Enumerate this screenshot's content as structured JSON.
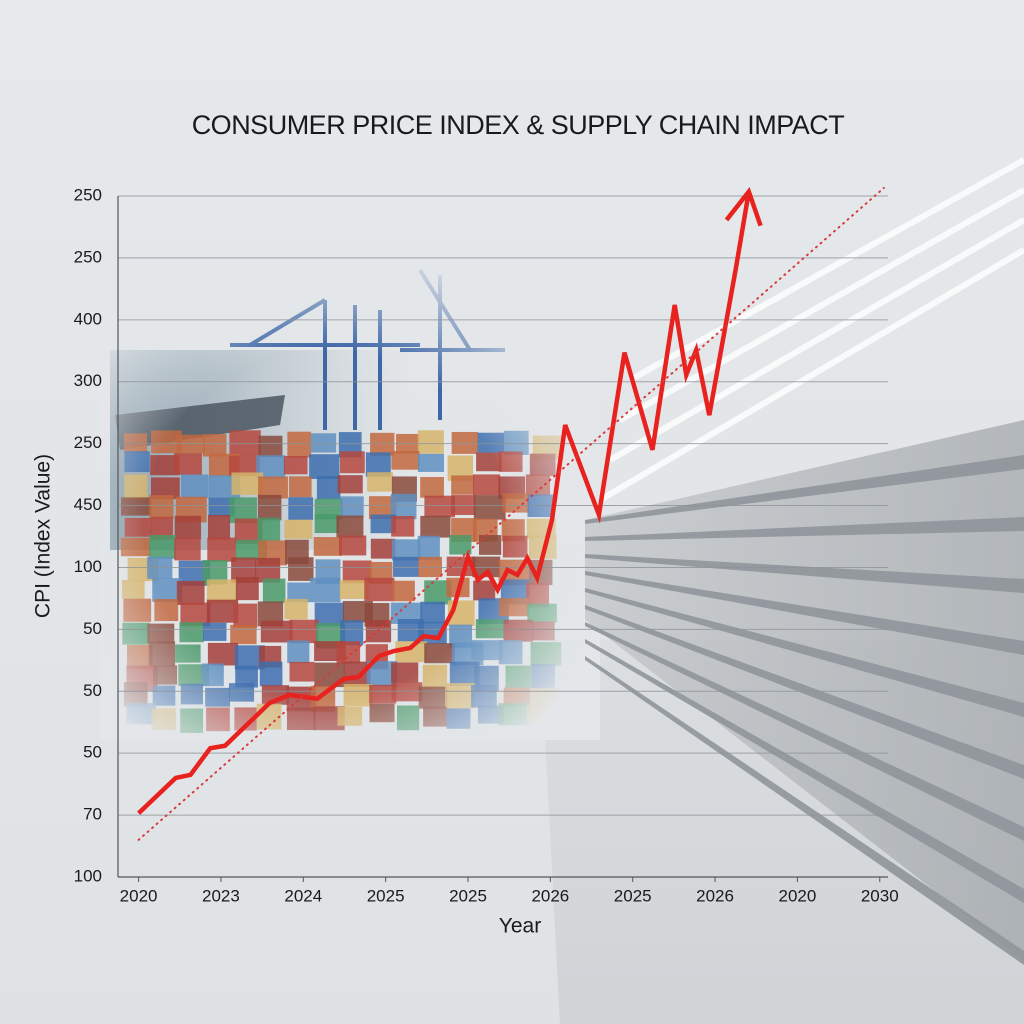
{
  "chart_data": {
    "type": "line",
    "title": "CONSUMER PRICE INDEX & SUPPLY CHAIN IMPACT",
    "x_label": "Year",
    "y_label": "CPI (Index Value)",
    "xlim": [
      -0.25,
      9.1
    ],
    "ylim": [
      0,
      11
    ],
    "xticks": [
      {
        "value": 0,
        "label": "2020"
      },
      {
        "value": 1,
        "label": "2023"
      },
      {
        "value": 2,
        "label": "2024"
      },
      {
        "value": 3,
        "label": "2025"
      },
      {
        "value": 4,
        "label": "2025"
      },
      {
        "value": 5,
        "label": "2026"
      },
      {
        "value": 6,
        "label": "2025"
      },
      {
        "value": 7,
        "label": "2026"
      },
      {
        "value": 8,
        "label": "2020"
      },
      {
        "value": 9,
        "label": "2030"
      }
    ],
    "yticks": [
      {
        "value": 0,
        "label": "100"
      },
      {
        "value": 1,
        "label": "70"
      },
      {
        "value": 2,
        "label": "50"
      },
      {
        "value": 3,
        "label": "50"
      },
      {
        "value": 4,
        "label": "50"
      },
      {
        "value": 5,
        "label": "100"
      },
      {
        "value": 6,
        "label": "450"
      },
      {
        "value": 7,
        "label": "250"
      },
      {
        "value": 8,
        "label": "300"
      },
      {
        "value": 9,
        "label": "400"
      },
      {
        "value": 10,
        "label": "250"
      },
      {
        "value": 11,
        "label": "250"
      }
    ],
    "grid": true,
    "series": [
      {
        "color": "#e8221e",
        "style": "solid",
        "arrow": true,
        "x": [
          0,
          0.45,
          0.63,
          0.87,
          1.05,
          1.59,
          1.83,
          2.17,
          2.49,
          2.67,
          2.92,
          3.1,
          3.3,
          3.46,
          3.64,
          3.82,
          4.0,
          4.12,
          4.24,
          4.36,
          4.48,
          4.6,
          4.72,
          4.84,
          5.02,
          5.18,
          5.59,
          5.9,
          6.24,
          6.51,
          6.65,
          6.77,
          6.93,
          7.25,
          7.41
        ],
        "values": [
          1.03,
          1.6,
          1.65,
          2.08,
          2.12,
          2.81,
          2.94,
          2.88,
          3.2,
          3.23,
          3.57,
          3.65,
          3.7,
          3.89,
          3.86,
          4.31,
          5.17,
          4.8,
          4.93,
          4.64,
          4.96,
          4.88,
          5.15,
          4.83,
          5.77,
          7.3,
          5.85,
          8.47,
          6.9,
          9.24,
          8.11,
          8.51,
          7.46,
          9.81,
          11.07
        ]
      },
      {
        "color": "#d93a3a",
        "style": "dotted",
        "arrow": false,
        "x": [
          0,
          9.05
        ],
        "values": [
          0.6,
          11.13
        ]
      }
    ]
  }
}
